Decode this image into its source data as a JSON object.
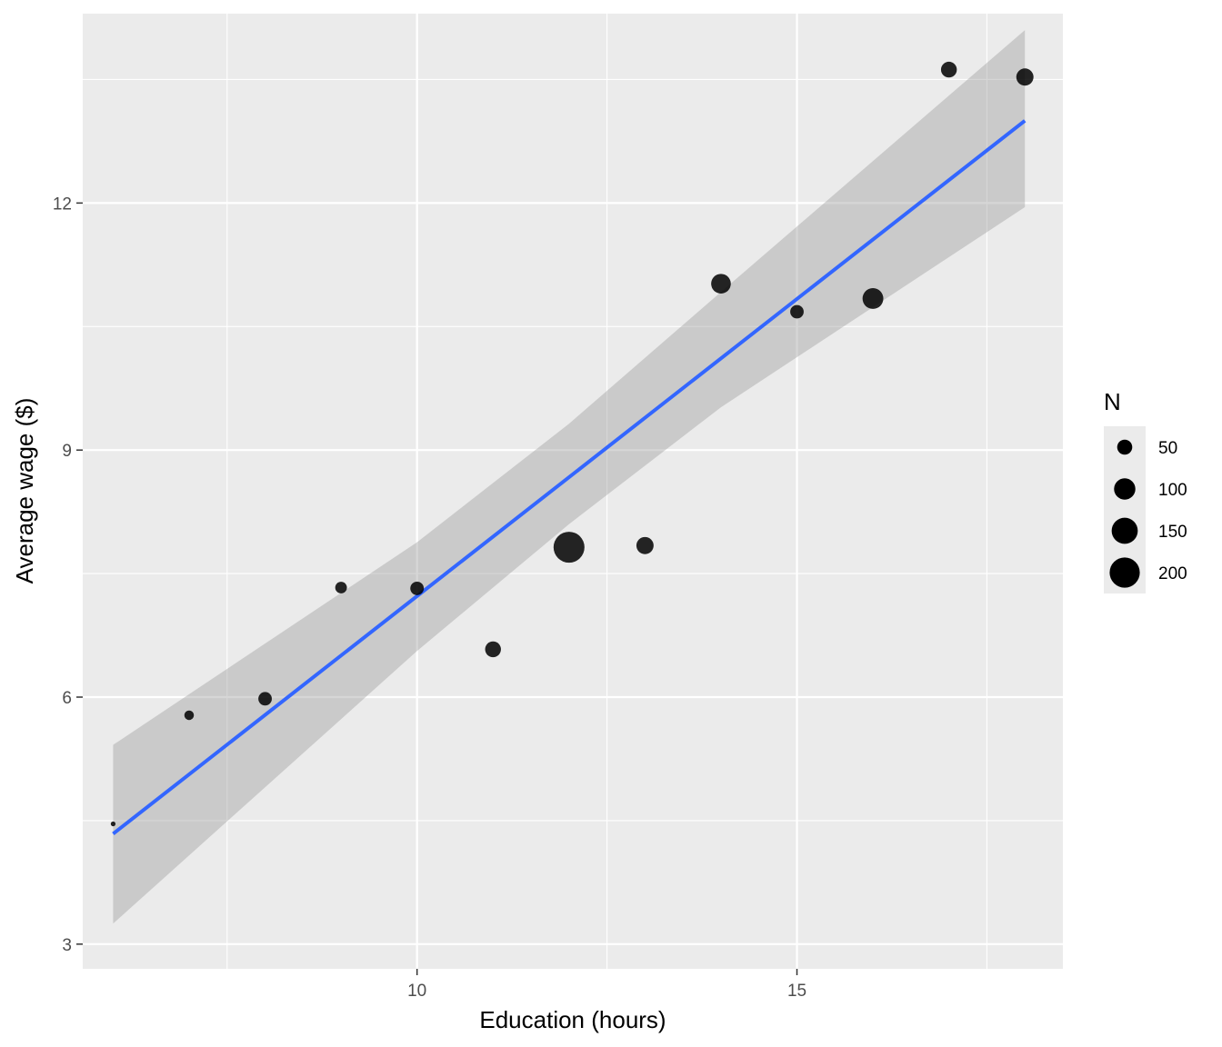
{
  "chart_data": {
    "type": "scatter",
    "title": "",
    "xlabel": "Education (hours)",
    "ylabel": "Average wage ($)",
    "xlim": [
      5.6,
      18.5
    ],
    "ylim": [
      2.7,
      14.3
    ],
    "x_ticks": [
      10,
      15
    ],
    "y_ticks": [
      3,
      6,
      9,
      12
    ],
    "grid": true,
    "background": "#ebebeb",
    "points": [
      {
        "x": 6,
        "y": 4.46,
        "n": 5
      },
      {
        "x": 7,
        "y": 5.78,
        "n": 20
      },
      {
        "x": 8,
        "y": 5.98,
        "n": 40
      },
      {
        "x": 9,
        "y": 7.33,
        "n": 30
      },
      {
        "x": 10,
        "y": 7.32,
        "n": 40
      },
      {
        "x": 11,
        "y": 6.58,
        "n": 55
      },
      {
        "x": 12,
        "y": 7.82,
        "n": 210
      },
      {
        "x": 13,
        "y": 7.84,
        "n": 65
      },
      {
        "x": 14,
        "y": 11.02,
        "n": 85
      },
      {
        "x": 15,
        "y": 10.68,
        "n": 40
      },
      {
        "x": 16,
        "y": 10.84,
        "n": 95
      },
      {
        "x": 17,
        "y": 13.62,
        "n": 55
      },
      {
        "x": 18,
        "y": 13.53,
        "n": 65
      }
    ],
    "fit": {
      "method": "lm",
      "color": "#3366ff",
      "line": [
        [
          6,
          4.34
        ],
        [
          18,
          13.0
        ]
      ],
      "band": [
        {
          "x": 6,
          "lo": 3.25,
          "hi": 5.42
        },
        {
          "x": 10,
          "lo": 6.56,
          "hi": 7.88
        },
        {
          "x": 12,
          "lo": 8.1,
          "hi": 9.32
        },
        {
          "x": 14,
          "lo": 9.52,
          "hi": 10.92
        },
        {
          "x": 18,
          "lo": 11.95,
          "hi": 14.1
        }
      ]
    },
    "legend": {
      "title": "N",
      "position": "right",
      "entries": [
        {
          "label": "50",
          "n": 50
        },
        {
          "label": "100",
          "n": 100
        },
        {
          "label": "150",
          "n": 150
        },
        {
          "label": "200",
          "n": 200
        }
      ]
    }
  }
}
